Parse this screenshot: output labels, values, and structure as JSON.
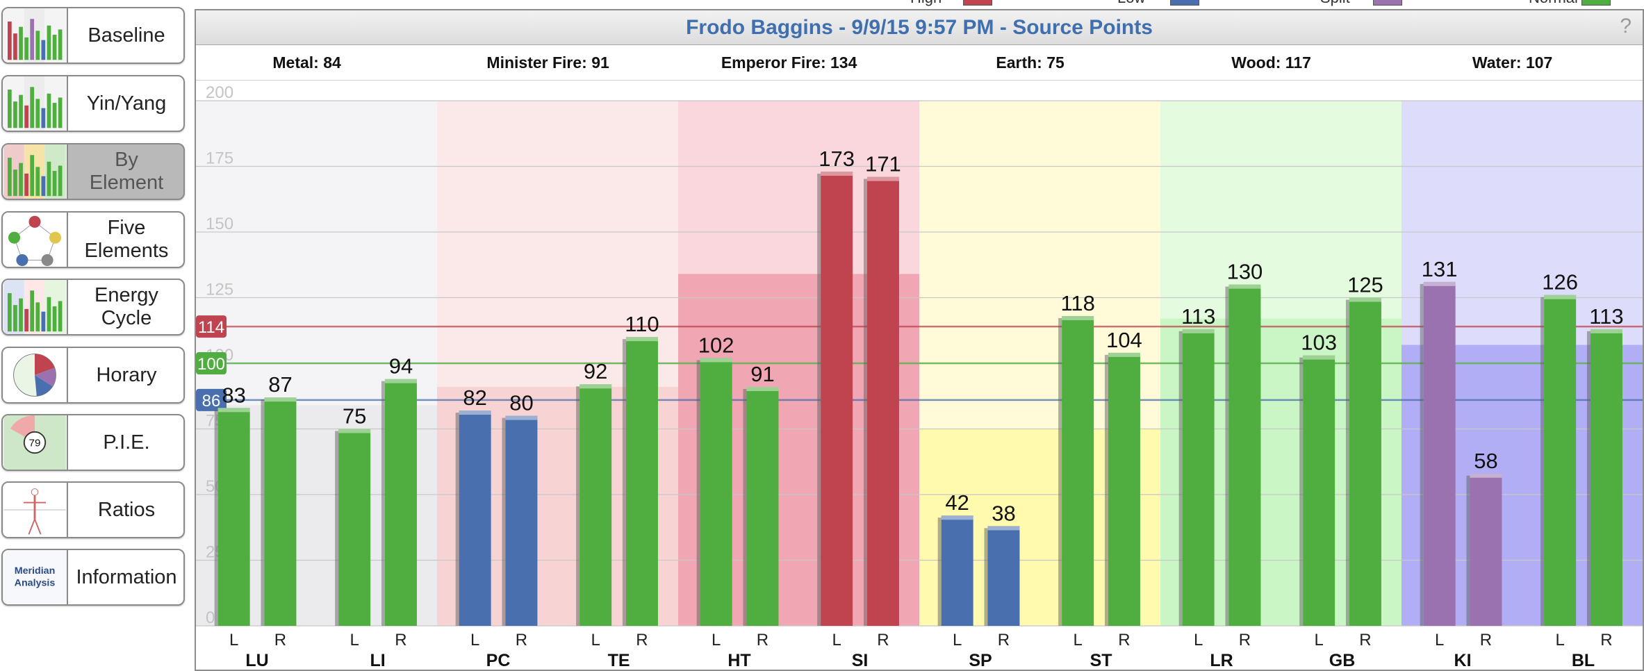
{
  "sidebar": {
    "items": [
      {
        "label": "Baseline",
        "icon": "bar-chart-thumbnail-icon",
        "active": false
      },
      {
        "label": "Yin/Yang",
        "icon": "yin-yang-chart-thumbnail-icon",
        "active": false
      },
      {
        "label": "By\nElement",
        "icon": "element-chart-thumbnail-icon",
        "active": true
      },
      {
        "label": "Five\nElements",
        "icon": "five-elements-diagram-icon",
        "active": false
      },
      {
        "label": "Energy\nCycle",
        "icon": "energy-cycle-chart-icon",
        "active": false
      },
      {
        "label": "Horary",
        "icon": "horary-pie-icon",
        "active": false
      },
      {
        "label": "P.I.E.",
        "icon": "pie-score-icon",
        "active": false
      },
      {
        "label": "Ratios",
        "icon": "body-ratios-icon",
        "active": false
      },
      {
        "label": "Information",
        "icon": "meridian-analysis-logo-icon",
        "active": false
      }
    ],
    "pie_score": "79",
    "info_logo_text": "Meridian\nAnalysis"
  },
  "help_label": "?",
  "colors": {
    "high": "#c0444f",
    "low": "#4a6fae",
    "split": "#9a72b0",
    "normal": "#4fae3f",
    "title": "#3f6fae",
    "metal_bg": "#e9e9ec",
    "minister_fire_bg": "#f7cfcf",
    "emperor_fire_bg": "#ef9dac",
    "earth_bg": "#fff9a6",
    "wood_bg": "#c6f5c0",
    "water_bg": "#a9a6f3"
  },
  "chart_data": {
    "type": "bar",
    "title": "Frodo Baggins - 9/9/15 9:57 PM - Source Points",
    "legend": [
      "High",
      "Low",
      "Split",
      "Normal"
    ],
    "legend_placement": "top",
    "ylim": [
      0,
      200
    ],
    "yticks": [
      0,
      25,
      50,
      75,
      100,
      125,
      150,
      175,
      200
    ],
    "grid": true,
    "reference_lines": [
      {
        "label": "114",
        "value": 114,
        "status": "high"
      },
      {
        "label": "100",
        "value": 100,
        "status": "normal"
      },
      {
        "label": "86",
        "value": 86,
        "status": "low"
      }
    ],
    "elements": [
      {
        "label": "Metal: 84",
        "value": 84,
        "meridians": [
          "LU",
          "LI"
        ]
      },
      {
        "label": "Minister Fire: 91",
        "value": 91,
        "meridians": [
          "PC",
          "TE"
        ]
      },
      {
        "label": "Emperor Fire: 134",
        "value": 134,
        "meridians": [
          "HT",
          "SI"
        ]
      },
      {
        "label": "Earth: 75",
        "value": 75,
        "meridians": [
          "SP",
          "ST"
        ]
      },
      {
        "label": "Wood: 117",
        "value": 117,
        "meridians": [
          "LR",
          "GB"
        ]
      },
      {
        "label": "Water: 107",
        "value": 107,
        "meridians": [
          "KI",
          "BL"
        ]
      }
    ],
    "meridians": [
      {
        "name": "LU",
        "L": 83,
        "R": 87,
        "status": [
          "normal",
          "normal"
        ]
      },
      {
        "name": "LI",
        "L": 75,
        "R": 94,
        "status": [
          "normal",
          "normal"
        ]
      },
      {
        "name": "PC",
        "L": 82,
        "R": 80,
        "status": [
          "low",
          "low"
        ]
      },
      {
        "name": "TE",
        "L": 92,
        "R": 110,
        "status": [
          "normal",
          "normal"
        ]
      },
      {
        "name": "HT",
        "L": 102,
        "R": 91,
        "status": [
          "normal",
          "normal"
        ]
      },
      {
        "name": "SI",
        "L": 173,
        "R": 171,
        "status": [
          "high",
          "high"
        ]
      },
      {
        "name": "SP",
        "L": 42,
        "R": 38,
        "status": [
          "low",
          "low"
        ]
      },
      {
        "name": "ST",
        "L": 118,
        "R": 104,
        "status": [
          "normal",
          "normal"
        ]
      },
      {
        "name": "LR",
        "L": 113,
        "R": 130,
        "status": [
          "normal",
          "normal"
        ]
      },
      {
        "name": "GB",
        "L": 103,
        "R": 125,
        "status": [
          "normal",
          "normal"
        ]
      },
      {
        "name": "KI",
        "L": 131,
        "R": 58,
        "status": [
          "split",
          "split"
        ]
      },
      {
        "name": "BL",
        "L": 126,
        "R": 113,
        "status": [
          "normal",
          "normal"
        ]
      }
    ],
    "side_labels": [
      "L",
      "R"
    ]
  }
}
